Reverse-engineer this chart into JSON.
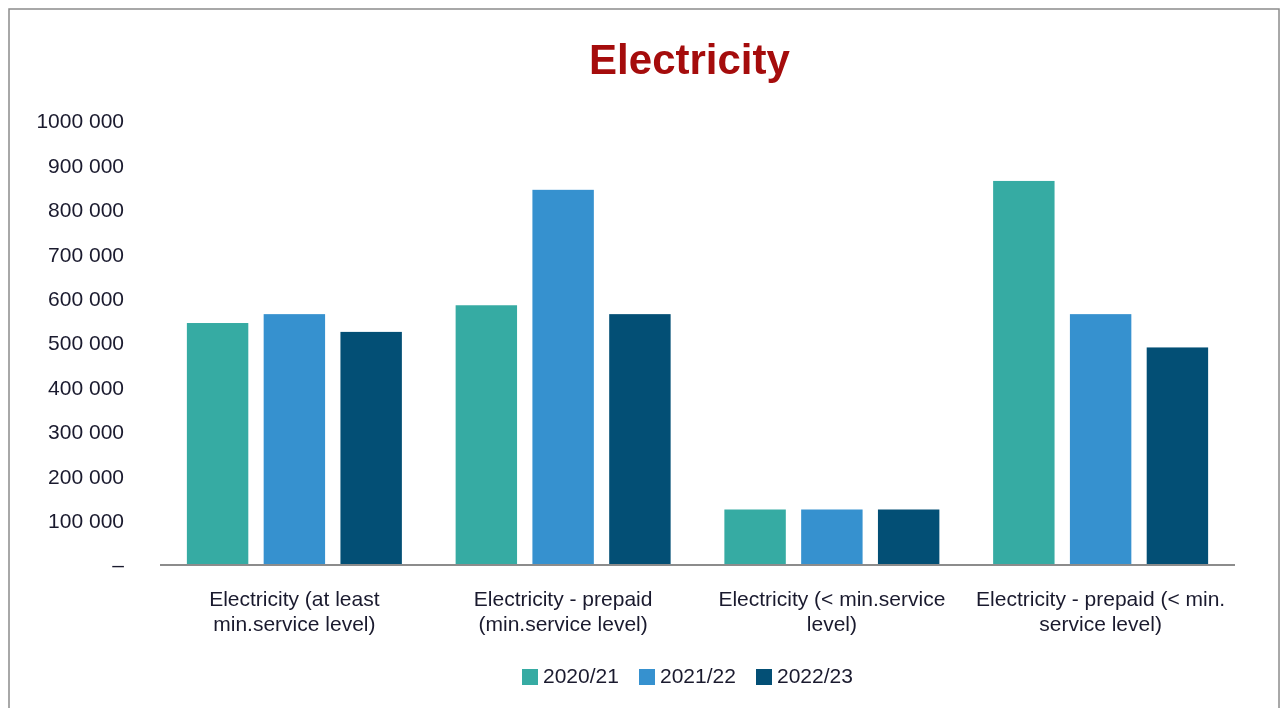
{
  "chart_data": {
    "type": "bar",
    "title": "Electricity",
    "categories": [
      "Electricity (at least min.service level)",
      "Electricity - prepaid (min.service level)",
      "Electricity (< min.service level)",
      "Electricity - prepaid (< min. service level)"
    ],
    "series": [
      {
        "name": "2020/21",
        "color": "#36aba3",
        "values": [
          545000,
          585000,
          125000,
          865000
        ]
      },
      {
        "name": "2021/22",
        "color": "#3691cf",
        "values": [
          565000,
          845000,
          125000,
          565000
        ]
      },
      {
        "name": "2022/23",
        "color": "#034f75",
        "values": [
          525000,
          565000,
          125000,
          490000
        ]
      }
    ],
    "ylim": [
      0,
      1000000
    ],
    "yticks": [
      {
        "value": 0,
        "label": "–"
      },
      {
        "value": 100000,
        "label": "100 000"
      },
      {
        "value": 200000,
        "label": "200 000"
      },
      {
        "value": 300000,
        "label": "300 000"
      },
      {
        "value": 400000,
        "label": "400 000"
      },
      {
        "value": 500000,
        "label": "500 000"
      },
      {
        "value": 600000,
        "label": "600 000"
      },
      {
        "value": 700000,
        "label": "700 000"
      },
      {
        "value": 800000,
        "label": "800 000"
      },
      {
        "value": 900000,
        "label": "900 000"
      },
      {
        "value": 1000000,
        "label": "1000 000"
      }
    ],
    "grid": false,
    "legend": "bottom"
  }
}
